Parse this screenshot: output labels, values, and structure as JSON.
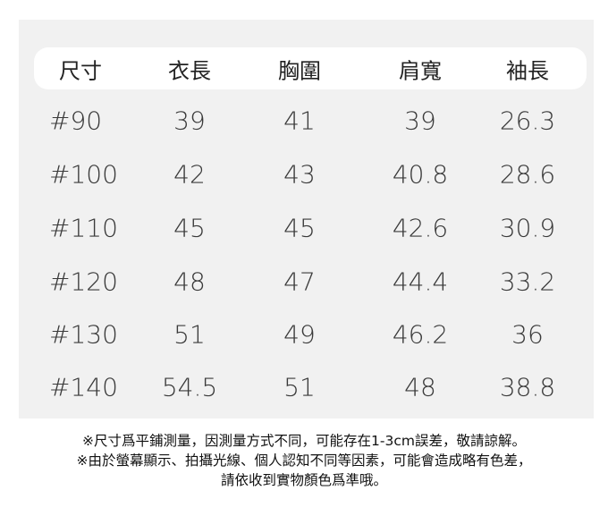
{
  "table": {
    "headers": [
      "尺寸",
      "衣長",
      "胸圍",
      "肩寬",
      "袖長"
    ],
    "rows": [
      [
        "#90",
        "39",
        "41",
        "39",
        "26.3"
      ],
      [
        "#100",
        "42",
        "43",
        "40.8",
        "28.6"
      ],
      [
        "#110",
        "45",
        "45",
        "42.6",
        "30.9"
      ],
      [
        "#120",
        "48",
        "47",
        "44.4",
        "33.2"
      ],
      [
        "#130",
        "51",
        "49",
        "46.2",
        "36"
      ],
      [
        "#140",
        "54.5",
        "51",
        "48",
        "38.8"
      ]
    ]
  },
  "notes": [
    "※尺寸爲平鋪測量，因測量方式不同，可能存在1-3cm誤差，敬請諒解。",
    "※由於螢幕顯示、拍攝光線、個人認知不同等因素，可能會造成略有色差，",
    "請依收到實物顏色爲準哦。"
  ]
}
